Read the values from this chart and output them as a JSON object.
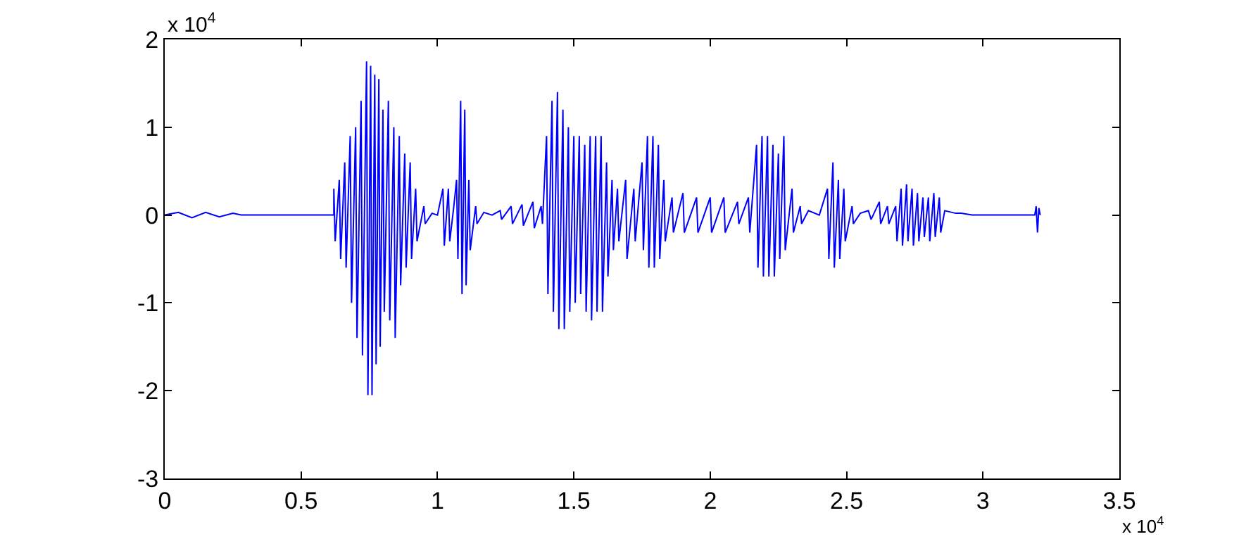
{
  "chart_data": {
    "type": "line",
    "xlim": [
      0,
      3.5
    ],
    "ylim": [
      -3,
      2
    ],
    "xticks": [
      0,
      0.5,
      1,
      1.5,
      2,
      2.5,
      3,
      3.5
    ],
    "yticks": [
      -3,
      -2,
      -1,
      0,
      1,
      2
    ],
    "grid": false,
    "marker": "none",
    "line_style": "solid",
    "annotations": [
      "x 10$^{4}$",
      "x 10$^{4}$"
    ],
    "x": [
      0,
      0.05,
      0.1,
      0.15,
      0.2,
      0.25,
      0.28,
      0.62,
      0.62,
      0.625,
      0.64,
      0.645,
      0.66,
      0.665,
      0.68,
      0.685,
      0.7,
      0.705,
      0.72,
      0.725,
      0.74,
      0.745,
      0.755,
      0.76,
      0.77,
      0.775,
      0.785,
      0.79,
      0.8,
      0.805,
      0.82,
      0.825,
      0.84,
      0.845,
      0.86,
      0.865,
      0.88,
      0.885,
      0.9,
      0.905,
      0.92,
      0.925,
      0.95,
      0.955,
      0.98,
      1.0,
      1.02,
      1.025,
      1.04,
      1.045,
      1.06,
      1.07,
      1.075,
      1.085,
      1.09,
      1.1,
      1.105,
      1.115,
      1.12,
      1.14,
      1.145,
      1.17,
      1.2,
      1.23,
      1.235,
      1.27,
      1.275,
      1.31,
      1.315,
      1.35,
      1.355,
      1.38,
      1.385,
      1.4,
      1.405,
      1.42,
      1.425,
      1.44,
      1.445,
      1.46,
      1.465,
      1.48,
      1.485,
      1.5,
      1.505,
      1.52,
      1.525,
      1.54,
      1.545,
      1.56,
      1.565,
      1.58,
      1.585,
      1.6,
      1.605,
      1.62,
      1.625,
      1.64,
      1.645,
      1.66,
      1.665,
      1.69,
      1.695,
      1.72,
      1.725,
      1.75,
      1.755,
      1.77,
      1.775,
      1.79,
      1.795,
      1.81,
      1.815,
      1.83,
      1.835,
      1.86,
      1.865,
      1.9,
      1.905,
      1.95,
      1.955,
      2.0,
      2.005,
      2.05,
      2.055,
      2.1,
      2.105,
      2.14,
      2.145,
      2.17,
      2.175,
      2.19,
      2.195,
      2.21,
      2.215,
      2.23,
      2.235,
      2.25,
      2.255,
      2.27,
      2.275,
      2.3,
      2.305,
      2.33,
      2.335,
      2.36,
      2.4,
      2.43,
      2.435,
      2.45,
      2.455,
      2.47,
      2.475,
      2.49,
      2.495,
      2.52,
      2.525,
      2.55,
      2.58,
      2.59,
      2.62,
      2.625,
      2.65,
      2.655,
      2.68,
      2.685,
      2.7,
      2.705,
      2.72,
      2.725,
      2.74,
      2.745,
      2.76,
      2.765,
      2.78,
      2.785,
      2.8,
      2.805,
      2.82,
      2.825,
      2.84,
      2.845,
      2.86,
      2.9,
      2.92,
      2.96,
      3.19,
      3.195,
      3.2,
      3.205,
      3.21
    ],
    "series": [
      {
        "color": "#0000ff",
        "values": [
          0,
          0.03,
          -0.03,
          0.03,
          -0.02,
          0.02,
          0,
          0,
          0.3,
          -0.3,
          0.4,
          -0.5,
          0.6,
          -0.6,
          0.9,
          -1.0,
          1.0,
          -1.4,
          1.3,
          -1.6,
          1.75,
          -2.05,
          1.7,
          -2.05,
          1.6,
          -1.7,
          1.55,
          -1.5,
          1.2,
          -1.1,
          1.3,
          -1.2,
          1.0,
          -1.4,
          0.9,
          -0.8,
          0.7,
          -0.6,
          0.6,
          -0.5,
          0.3,
          -0.3,
          0.1,
          -0.1,
          0.02,
          0,
          0.3,
          -0.35,
          0.3,
          -0.3,
          0.1,
          0.4,
          -0.5,
          1.3,
          -0.9,
          1.2,
          -0.8,
          0.4,
          -0.4,
          0.1,
          -0.1,
          0.03,
          0,
          0.05,
          -0.05,
          0.1,
          -0.1,
          0.12,
          -0.12,
          0.15,
          -0.15,
          0.1,
          -0.1,
          0.9,
          -0.9,
          1.3,
          -1.1,
          1.4,
          -1.3,
          1.2,
          -1.3,
          1.0,
          -1.1,
          0.9,
          -1.0,
          0.9,
          -0.9,
          0.8,
          -1.1,
          0.9,
          -1.2,
          0.9,
          -1.1,
          0.9,
          -1.1,
          0.6,
          -0.7,
          0.4,
          -0.4,
          0.3,
          -0.3,
          0.4,
          -0.5,
          0.3,
          -0.3,
          0.6,
          -0.4,
          0.9,
          -0.6,
          0.9,
          -0.6,
          0.8,
          -0.5,
          0.4,
          -0.3,
          0.2,
          -0.2,
          0.25,
          -0.2,
          0.2,
          -0.2,
          0.2,
          -0.2,
          0.2,
          -0.2,
          0.15,
          -0.1,
          0.2,
          -0.2,
          0.8,
          -0.6,
          0.9,
          -0.7,
          0.9,
          -0.7,
          0.8,
          -0.7,
          0.7,
          -0.5,
          0.9,
          -0.4,
          0.3,
          -0.2,
          0.1,
          -0.1,
          0.05,
          0,
          0.3,
          -0.5,
          0.6,
          -0.6,
          0.4,
          -0.5,
          0.3,
          -0.3,
          0.1,
          -0.1,
          0.02,
          0.05,
          -0.05,
          0.15,
          -0.1,
          0.1,
          -0.1,
          0.1,
          -0.3,
          0.3,
          -0.35,
          0.35,
          -0.3,
          0.3,
          -0.35,
          0.25,
          -0.3,
          0.2,
          -0.25,
          0.2,
          -0.3,
          0.25,
          -0.25,
          0.2,
          -0.2,
          0.05,
          0.02,
          0.02,
          0,
          0,
          0.1,
          -0.2,
          0.08,
          0
        ]
      }
    ]
  }
}
